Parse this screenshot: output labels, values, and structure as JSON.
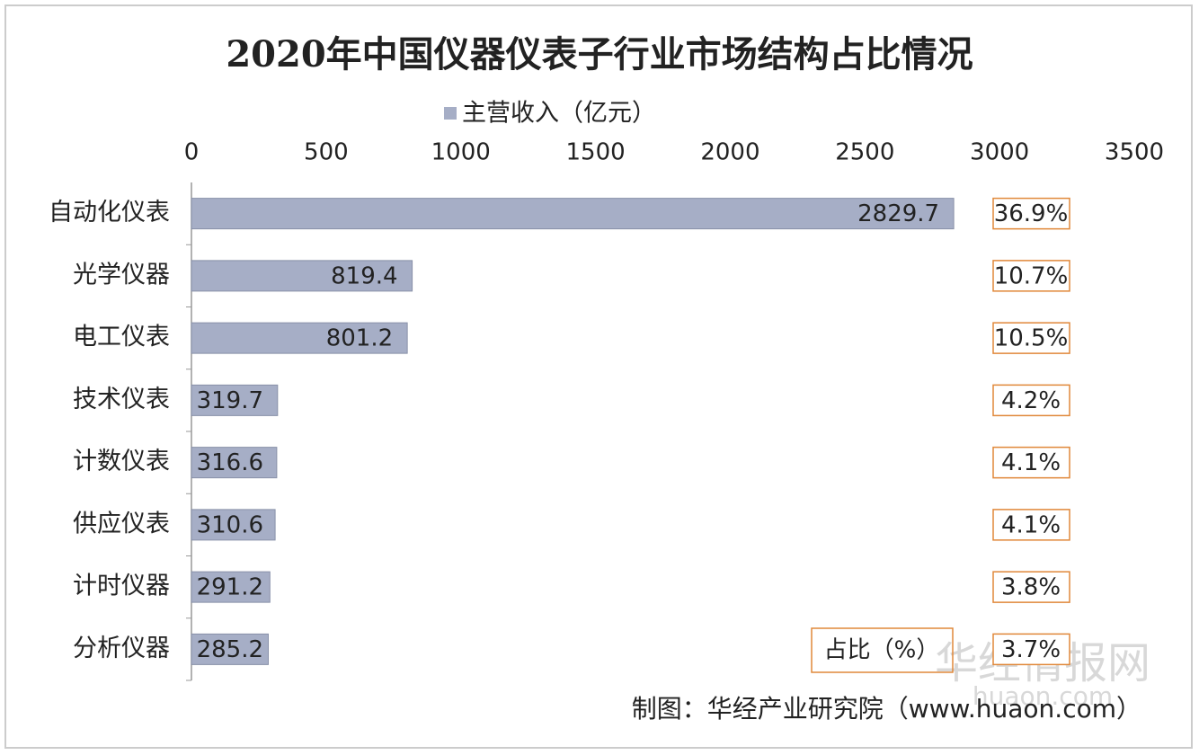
{
  "chart_data": {
    "type": "bar",
    "orientation": "horizontal",
    "title": "2020年中国仪器仪表子行业市场结构占比情况",
    "categories": [
      "自动化仪表",
      "光学仪器",
      "电工仪表",
      "技术仪表",
      "计数仪表",
      "供应仪表",
      "计时仪器",
      "分析仪器"
    ],
    "series": [
      {
        "name": "主营收入（亿元）",
        "color": "#a6aec6",
        "values": [
          2829.7,
          819.4,
          801.2,
          319.7,
          316.6,
          310.6,
          291.2,
          285.2
        ]
      }
    ],
    "share": {
      "name": "占比（%）",
      "color": "#e0883a",
      "values": [
        36.9,
        10.7,
        10.5,
        4.2,
        4.1,
        4.1,
        3.8,
        3.7
      ],
      "value_labels": [
        "36.9%",
        "10.7%",
        "10.5%",
        "4.2%",
        "4.1%",
        "4.1%",
        "3.8%",
        "3.7%"
      ]
    },
    "xlim": [
      0,
      3500
    ],
    "xticks": [
      0,
      500,
      1000,
      1500,
      2000,
      2500,
      3000,
      3500
    ],
    "source": "制图：华经产业研究院（www.huaon.com）",
    "watermark": "华经情报网",
    "watermark_url": "huaon.com"
  }
}
